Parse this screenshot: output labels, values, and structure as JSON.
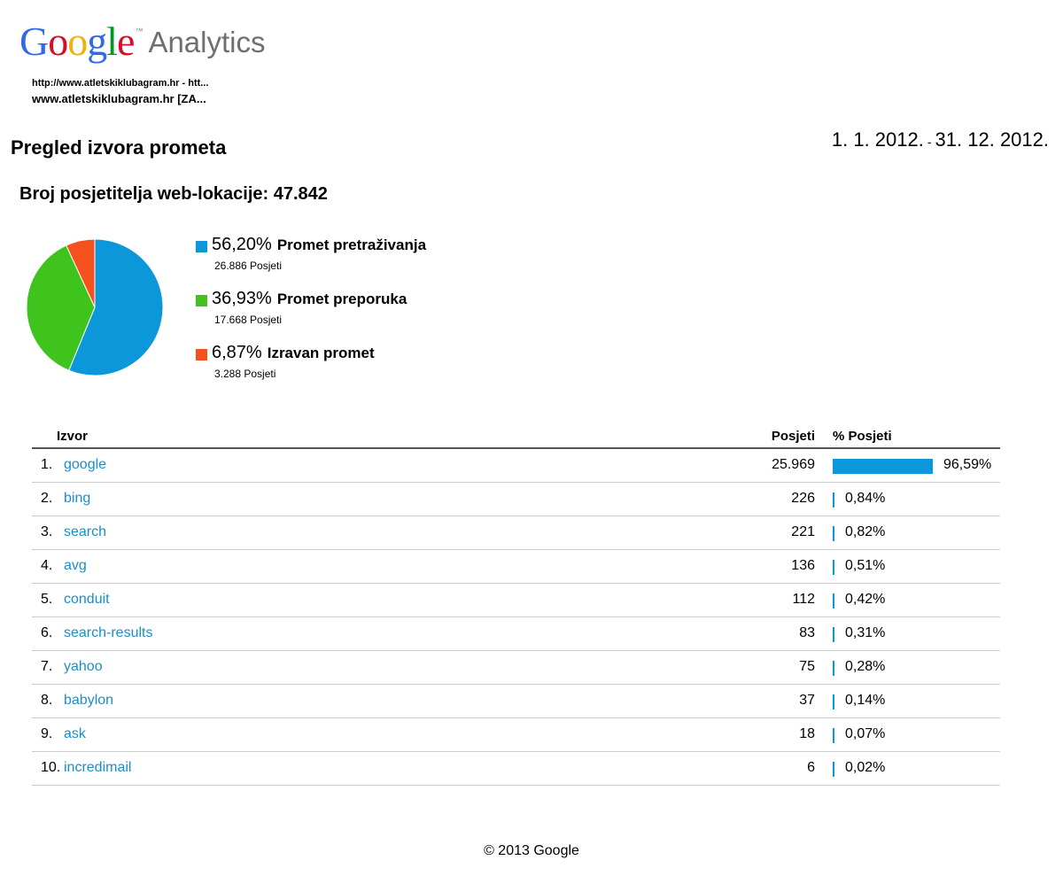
{
  "logo": {
    "letters": [
      {
        "ch": "G",
        "color": "#3369e8"
      },
      {
        "ch": "o",
        "color": "#d50f25"
      },
      {
        "ch": "o",
        "color": "#eeb211"
      },
      {
        "ch": "g",
        "color": "#3369e8"
      },
      {
        "ch": "l",
        "color": "#009925"
      },
      {
        "ch": "e",
        "color": "#d50f25"
      }
    ],
    "tm": "™",
    "product": "Analytics"
  },
  "site": {
    "url_line": "http://www.atletskiklubagram.hr - htt...",
    "name_line": "www.atletskiklubagram.hr [ZA..."
  },
  "page_title": "Pregled izvora prometa",
  "date_range": {
    "start": "1. 1. 2012.",
    "sep": "-",
    "end": "31. 12. 2012."
  },
  "visitors_text": "Broj posjetitelja web-lokacije: 47.842",
  "chart_data": {
    "type": "pie",
    "start_angle_deg": 90,
    "slices": [
      {
        "pct_label": "56,20%",
        "label": "Promet pretraživanja",
        "value": 56.2,
        "count_label": "26.886 Posjeti",
        "color": "#0b97d9"
      },
      {
        "pct_label": "36,93%",
        "label": "Promet preporuka",
        "value": 36.93,
        "count_label": "17.668 Posjeti",
        "color": "#3ec41d"
      },
      {
        "pct_label": "6,87%",
        "label": "Izravan promet",
        "value": 6.87,
        "count_label": "3.288 Posjeti",
        "color": "#f4511e"
      }
    ]
  },
  "table": {
    "headers": {
      "source": "Izvor",
      "visits": "Posjeti",
      "pct": "% Posjeti"
    },
    "rows": [
      {
        "idx": "1.",
        "source": "google",
        "visits": "25.969",
        "pct": 96.59,
        "pct_label": "96,59%"
      },
      {
        "idx": "2.",
        "source": "bing",
        "visits": "226",
        "pct": 0.84,
        "pct_label": "0,84%"
      },
      {
        "idx": "3.",
        "source": "search",
        "visits": "221",
        "pct": 0.82,
        "pct_label": "0,82%"
      },
      {
        "idx": "4.",
        "source": "avg",
        "visits": "136",
        "pct": 0.51,
        "pct_label": "0,51%"
      },
      {
        "idx": "5.",
        "source": "conduit",
        "visits": "112",
        "pct": 0.42,
        "pct_label": "0,42%"
      },
      {
        "idx": "6.",
        "source": "search-results",
        "visits": "83",
        "pct": 0.31,
        "pct_label": "0,31%"
      },
      {
        "idx": "7.",
        "source": "yahoo",
        "visits": "75",
        "pct": 0.28,
        "pct_label": "0,28%"
      },
      {
        "idx": "8.",
        "source": "babylon",
        "visits": "37",
        "pct": 0.14,
        "pct_label": "0,14%"
      },
      {
        "idx": "9.",
        "source": "ask",
        "visits": "18",
        "pct": 0.07,
        "pct_label": "0,07%"
      },
      {
        "idx": "10.",
        "source": "incredimail",
        "visits": "6",
        "pct": 0.02,
        "pct_label": "0,02%"
      }
    ]
  },
  "footer": "© 2013 Google"
}
